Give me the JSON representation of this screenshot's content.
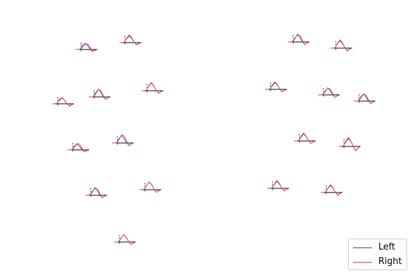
{
  "chart_data": {
    "type": "line",
    "title": "",
    "xlabel": "",
    "ylabel": "",
    "grid": false,
    "legend_placement": "lower-right",
    "series": [
      {
        "name": "Left",
        "color": "#3b3bb8"
      },
      {
        "name": "Right",
        "color": "#e0405a"
      }
    ],
    "panels": [
      {
        "id": 1,
        "left": [
          0,
          0,
          0.05,
          0.55,
          0.75,
          0.45,
          0.05,
          -0.25,
          -0.1,
          0
        ],
        "right": [
          0,
          0,
          0,
          0.3,
          0.7,
          0.65,
          0.25,
          -0.2,
          -0.1,
          0
        ]
      },
      {
        "id": 2,
        "left": [
          0,
          0,
          0.05,
          0.5,
          0.8,
          0.5,
          0.05,
          -0.25,
          -0.1,
          0
        ],
        "right": [
          0,
          0,
          0.05,
          0.55,
          0.95,
          0.6,
          0.05,
          -0.3,
          -0.1,
          0
        ]
      },
      {
        "id": 3,
        "left": [
          0,
          0,
          0.05,
          0.45,
          0.7,
          0.45,
          0.05,
          -0.25,
          -0.1,
          0
        ],
        "right": [
          0,
          0,
          0.05,
          0.55,
          0.75,
          0.45,
          0.05,
          -0.3,
          -0.1,
          0
        ]
      },
      {
        "id": 4,
        "left": [
          0,
          0,
          0.05,
          0.55,
          0.95,
          0.6,
          0.05,
          -0.3,
          -0.1,
          0
        ],
        "right": [
          0,
          0,
          0,
          0.35,
          0.95,
          0.8,
          0.2,
          -0.3,
          -0.1,
          0
        ]
      },
      {
        "id": 5,
        "left": [
          0,
          0,
          0.05,
          0.55,
          0.95,
          0.6,
          0.05,
          -0.3,
          -0.1,
          0
        ],
        "right": [
          0,
          0,
          0.05,
          0.6,
          1.0,
          0.65,
          0.05,
          -0.3,
          -0.1,
          0
        ]
      },
      {
        "id": 6,
        "left": [
          0,
          0,
          0.05,
          0.5,
          0.7,
          0.45,
          0.05,
          -0.25,
          -0.1,
          0
        ],
        "right": [
          0,
          0,
          0,
          0.35,
          0.8,
          0.7,
          0.2,
          -0.25,
          -0.1,
          0
        ]
      },
      {
        "id": 7,
        "left": [
          0,
          0,
          0.05,
          0.55,
          0.9,
          0.55,
          0.05,
          -0.3,
          -0.1,
          0
        ],
        "right": [
          0,
          0,
          0,
          0.45,
          1.0,
          0.85,
          0.25,
          -0.35,
          -0.1,
          0
        ]
      },
      {
        "id": 8,
        "left": [
          0,
          0,
          0.05,
          0.5,
          0.85,
          0.55,
          0.05,
          -0.3,
          -0.1,
          0
        ],
        "right": [
          0,
          0,
          0,
          0.4,
          0.95,
          0.8,
          0.2,
          -0.3,
          -0.1,
          0
        ]
      },
      {
        "id": 9,
        "left": [
          0,
          0,
          0.05,
          0.55,
          0.95,
          0.6,
          0.05,
          -0.3,
          -0.1,
          0
        ],
        "right": [
          0,
          0,
          0.05,
          0.55,
          0.95,
          0.65,
          0.05,
          -0.3,
          -0.1,
          0
        ]
      },
      {
        "id": 10,
        "left": [
          0,
          0,
          0.05,
          0.5,
          0.9,
          0.55,
          0.05,
          -0.3,
          -0.1,
          0
        ],
        "right": [
          0,
          0,
          0.05,
          0.55,
          0.85,
          0.55,
          0.05,
          -0.3,
          -0.1,
          0
        ]
      },
      {
        "id": 11,
        "left": [
          0,
          0,
          0.05,
          0.5,
          0.85,
          0.55,
          0.05,
          -0.3,
          -0.1,
          0
        ],
        "right": [
          0,
          0,
          0,
          0.4,
          0.95,
          0.8,
          0.2,
          -0.3,
          -0.1,
          0
        ]
      },
      {
        "id": 12,
        "left": [
          0,
          0,
          0.05,
          0.55,
          0.9,
          0.55,
          0.05,
          -0.3,
          -0.1,
          0
        ],
        "right": [
          0,
          0,
          0.05,
          0.6,
          1.0,
          0.65,
          0.05,
          -0.35,
          -0.1,
          0
        ]
      },
      {
        "id": 13,
        "left": [
          0,
          0,
          0.05,
          0.45,
          0.8,
          0.55,
          0.05,
          -0.3,
          -0.1,
          0
        ],
        "right": [
          0,
          0,
          0.05,
          0.55,
          0.9,
          0.6,
          0.05,
          -0.3,
          -0.1,
          0
        ]
      },
      {
        "id": 14,
        "left": [
          0,
          0,
          0.05,
          0.5,
          0.85,
          0.55,
          0.05,
          -0.3,
          -0.1,
          0
        ],
        "right": [
          0,
          0,
          0,
          0.4,
          0.85,
          0.7,
          0.2,
          -0.3,
          -0.1,
          0
        ]
      },
      {
        "id": 15,
        "left": [
          0,
          0,
          0.05,
          0.55,
          0.85,
          0.55,
          0.05,
          -0.3,
          -0.1,
          0
        ],
        "right": [
          0,
          0,
          0,
          0.35,
          0.85,
          0.75,
          0.2,
          -0.3,
          -0.1,
          0
        ]
      },
      {
        "id": 16,
        "left": [
          0,
          0,
          0.05,
          0.5,
          0.85,
          0.5,
          0.05,
          -0.3,
          -0.1,
          0
        ],
        "right": [
          0,
          0,
          0.05,
          0.6,
          0.95,
          0.55,
          0.05,
          -0.3,
          -0.1,
          0
        ]
      },
      {
        "id": 17,
        "left": [
          0,
          0,
          0.05,
          0.55,
          0.95,
          0.65,
          0.05,
          -0.5,
          -0.2,
          0
        ],
        "right": [
          0,
          0,
          0.05,
          0.65,
          1.1,
          0.7,
          0.05,
          -0.55,
          -0.2,
          0
        ]
      },
      {
        "id": 18,
        "left": [
          0,
          0,
          0.05,
          0.5,
          0.85,
          0.55,
          0.05,
          -0.3,
          -0.1,
          0
        ],
        "right": [
          0,
          0,
          0.05,
          0.55,
          0.95,
          0.6,
          0.05,
          -0.3,
          -0.1,
          0
        ]
      },
      {
        "id": 19,
        "left": [
          0,
          0,
          0.05,
          0.5,
          0.85,
          0.55,
          0.05,
          -0.3,
          -0.1,
          0
        ],
        "right": [
          0,
          0,
          0.05,
          0.55,
          0.95,
          0.6,
          0.05,
          -0.35,
          -0.1,
          0
        ]
      }
    ]
  }
}
